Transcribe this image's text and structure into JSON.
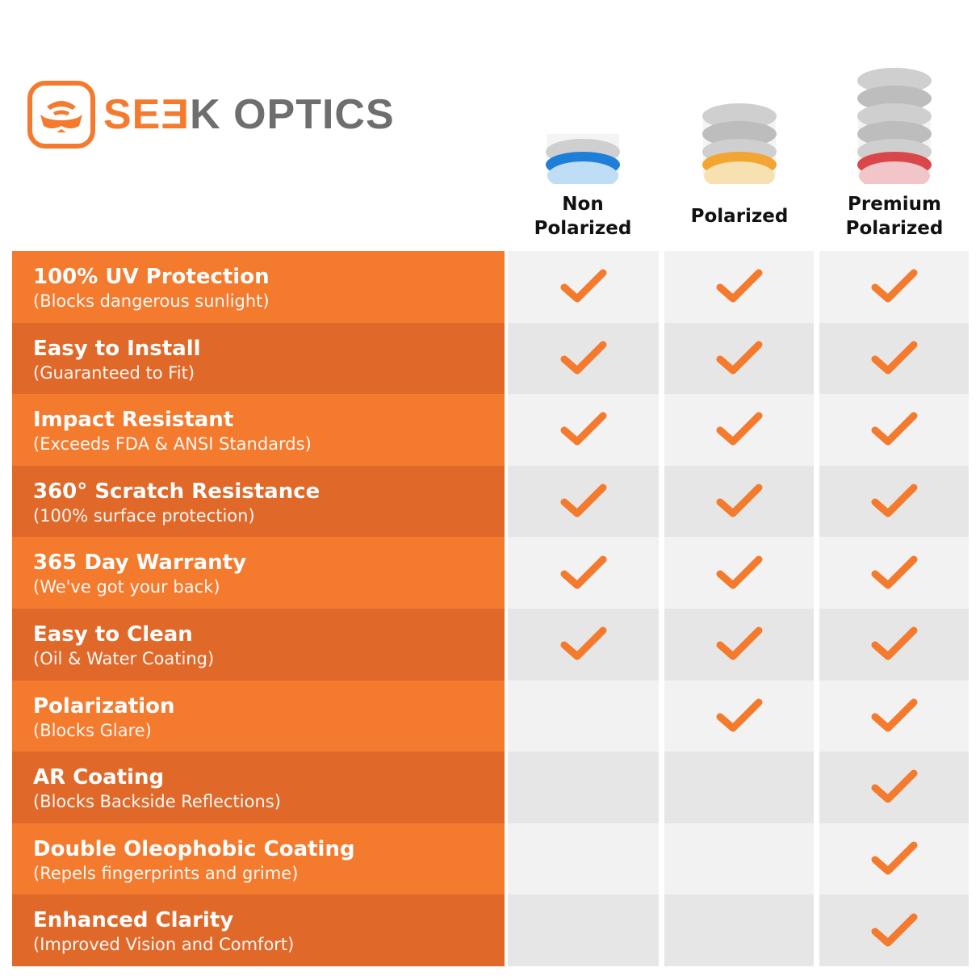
{
  "brand": {
    "name_part1": "SEƎ",
    "name_part2": "K OPTICS",
    "accent": "#F47A2E"
  },
  "columns": [
    {
      "label": "Non Polarized",
      "lens_color": "#1E7FD8",
      "lens_tint": "#BFDDF5"
    },
    {
      "label": "Polarized",
      "lens_color": "#F2A531",
      "lens_tint": "#F8E1B0"
    },
    {
      "label": "Premium Polarized",
      "lens_color": "#D9474A",
      "lens_tint": "#F2C6C8"
    }
  ],
  "features": [
    {
      "title": "100% UV Protection",
      "subtitle": "(Blocks dangerous sunlight)",
      "checks": [
        true,
        true,
        true
      ]
    },
    {
      "title": "Easy to Install",
      "subtitle": "(Guaranteed to Fit)",
      "checks": [
        true,
        true,
        true
      ]
    },
    {
      "title": "Impact Resistant",
      "subtitle": "(Exceeds FDA & ANSI Standards)",
      "checks": [
        true,
        true,
        true
      ]
    },
    {
      "title": "360° Scratch Resistance",
      "subtitle": "(100% surface protection)",
      "checks": [
        true,
        true,
        true
      ]
    },
    {
      "title": "365 Day Warranty",
      "subtitle": "(We've got your back)",
      "checks": [
        true,
        true,
        true
      ]
    },
    {
      "title": "Easy to Clean",
      "subtitle": "(Oil & Water Coating)",
      "checks": [
        true,
        true,
        true
      ]
    },
    {
      "title": "Polarization",
      "subtitle": "(Blocks Glare)",
      "checks": [
        false,
        true,
        true
      ]
    },
    {
      "title": "AR Coating",
      "subtitle": "(Blocks Backside Reflections)",
      "checks": [
        false,
        false,
        true
      ]
    },
    {
      "title": "Double Oleophobic Coating",
      "subtitle": "(Repels fingerprints and grime)",
      "checks": [
        false,
        false,
        true
      ]
    },
    {
      "title": "Enhanced Clarity",
      "subtitle": "(Improved Vision and Comfort)",
      "checks": [
        false,
        false,
        true
      ]
    }
  ],
  "colors": {
    "orange": "#F47A2E",
    "orange_dark": "#E0692A",
    "cell_light": "#F2F2F2",
    "cell_dark": "#E6E6E6",
    "check": "#F47A2E"
  }
}
